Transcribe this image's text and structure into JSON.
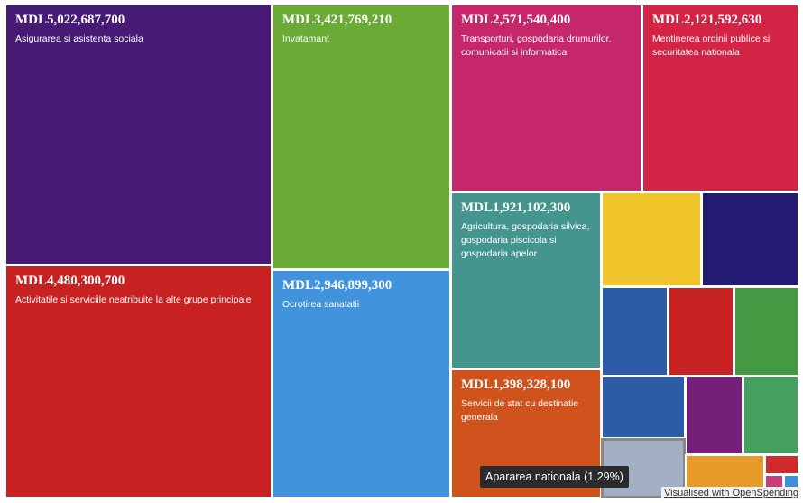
{
  "chart_data": {
    "type": "treemap",
    "currency_prefix": "MDL",
    "items": [
      {
        "name": "Asigurarea si asistenta sociala",
        "value": 5022687700,
        "value_label": "MDL5,022,687,700",
        "color": "#471a76"
      },
      {
        "name": "Activitatile si serviciile neatribuite la alte grupe principale",
        "value": 4480300700,
        "value_label": "MDL4,480,300,700",
        "color": "#c72121"
      },
      {
        "name": "Invatamant",
        "value": 3421769210,
        "value_label": "MDL3,421,769,210",
        "color": "#6aab35"
      },
      {
        "name": "Ocrotirea sanatatii",
        "value": 2946899300,
        "value_label": "MDL2,946,899,300",
        "color": "#4293dd"
      },
      {
        "name": "Transporturi, gospodaria drumurilor, comunicatii si informatica",
        "value": 2571540400,
        "value_label": "MDL2,571,540,400",
        "color": "#c6266a"
      },
      {
        "name": "Mentinerea ordinii publice si securitatea nationala",
        "value": 2121592630,
        "value_label": "MDL2,121,592,630",
        "color": "#d42445"
      },
      {
        "name": "Agricultura, gospodaria silvica, gospodaria piscicola si gospodaria apelor",
        "value": 1921102300,
        "value_label": "MDL1,921,102,300",
        "color": "#45958f"
      },
      {
        "name": "Servicii de stat cu destinatie generala",
        "value": 1398328100,
        "value_label": "MDL1,398,328,100",
        "color": "#d0521c"
      },
      {
        "name": "",
        "value": null,
        "value_label": "",
        "color": "#f0c52b"
      },
      {
        "name": "",
        "value": null,
        "value_label": "",
        "color": "#241c74"
      },
      {
        "name": "",
        "value": null,
        "value_label": "",
        "color": "#2c5ca6"
      },
      {
        "name": "",
        "value": null,
        "value_label": "",
        "color": "#c82323"
      },
      {
        "name": "",
        "value": null,
        "value_label": "",
        "color": "#449a42"
      },
      {
        "name": "",
        "value": null,
        "value_label": "",
        "color": "#2c5ca6"
      },
      {
        "name": "",
        "value": null,
        "value_label": "",
        "color": "#761f78"
      },
      {
        "name": "",
        "value": null,
        "value_label": "",
        "color": "#44a05e"
      },
      {
        "name": "Apararea nationala",
        "value": null,
        "value_label": "",
        "color": "#a3b0c4",
        "highlighted": true
      },
      {
        "name": "",
        "value": null,
        "value_label": "",
        "color": "#e59a2a"
      },
      {
        "name": "",
        "value": null,
        "value_label": "",
        "color": "#d02a2a"
      },
      {
        "name": "",
        "value": null,
        "value_label": "",
        "color": "#cc3b7a"
      },
      {
        "name": "",
        "value": null,
        "value_label": "",
        "color": "#3f8ed9"
      }
    ]
  },
  "tooltip": {
    "text": "Apararea nationala (1.29%)"
  },
  "credit": {
    "text": "Visualised with OpenSpending"
  }
}
